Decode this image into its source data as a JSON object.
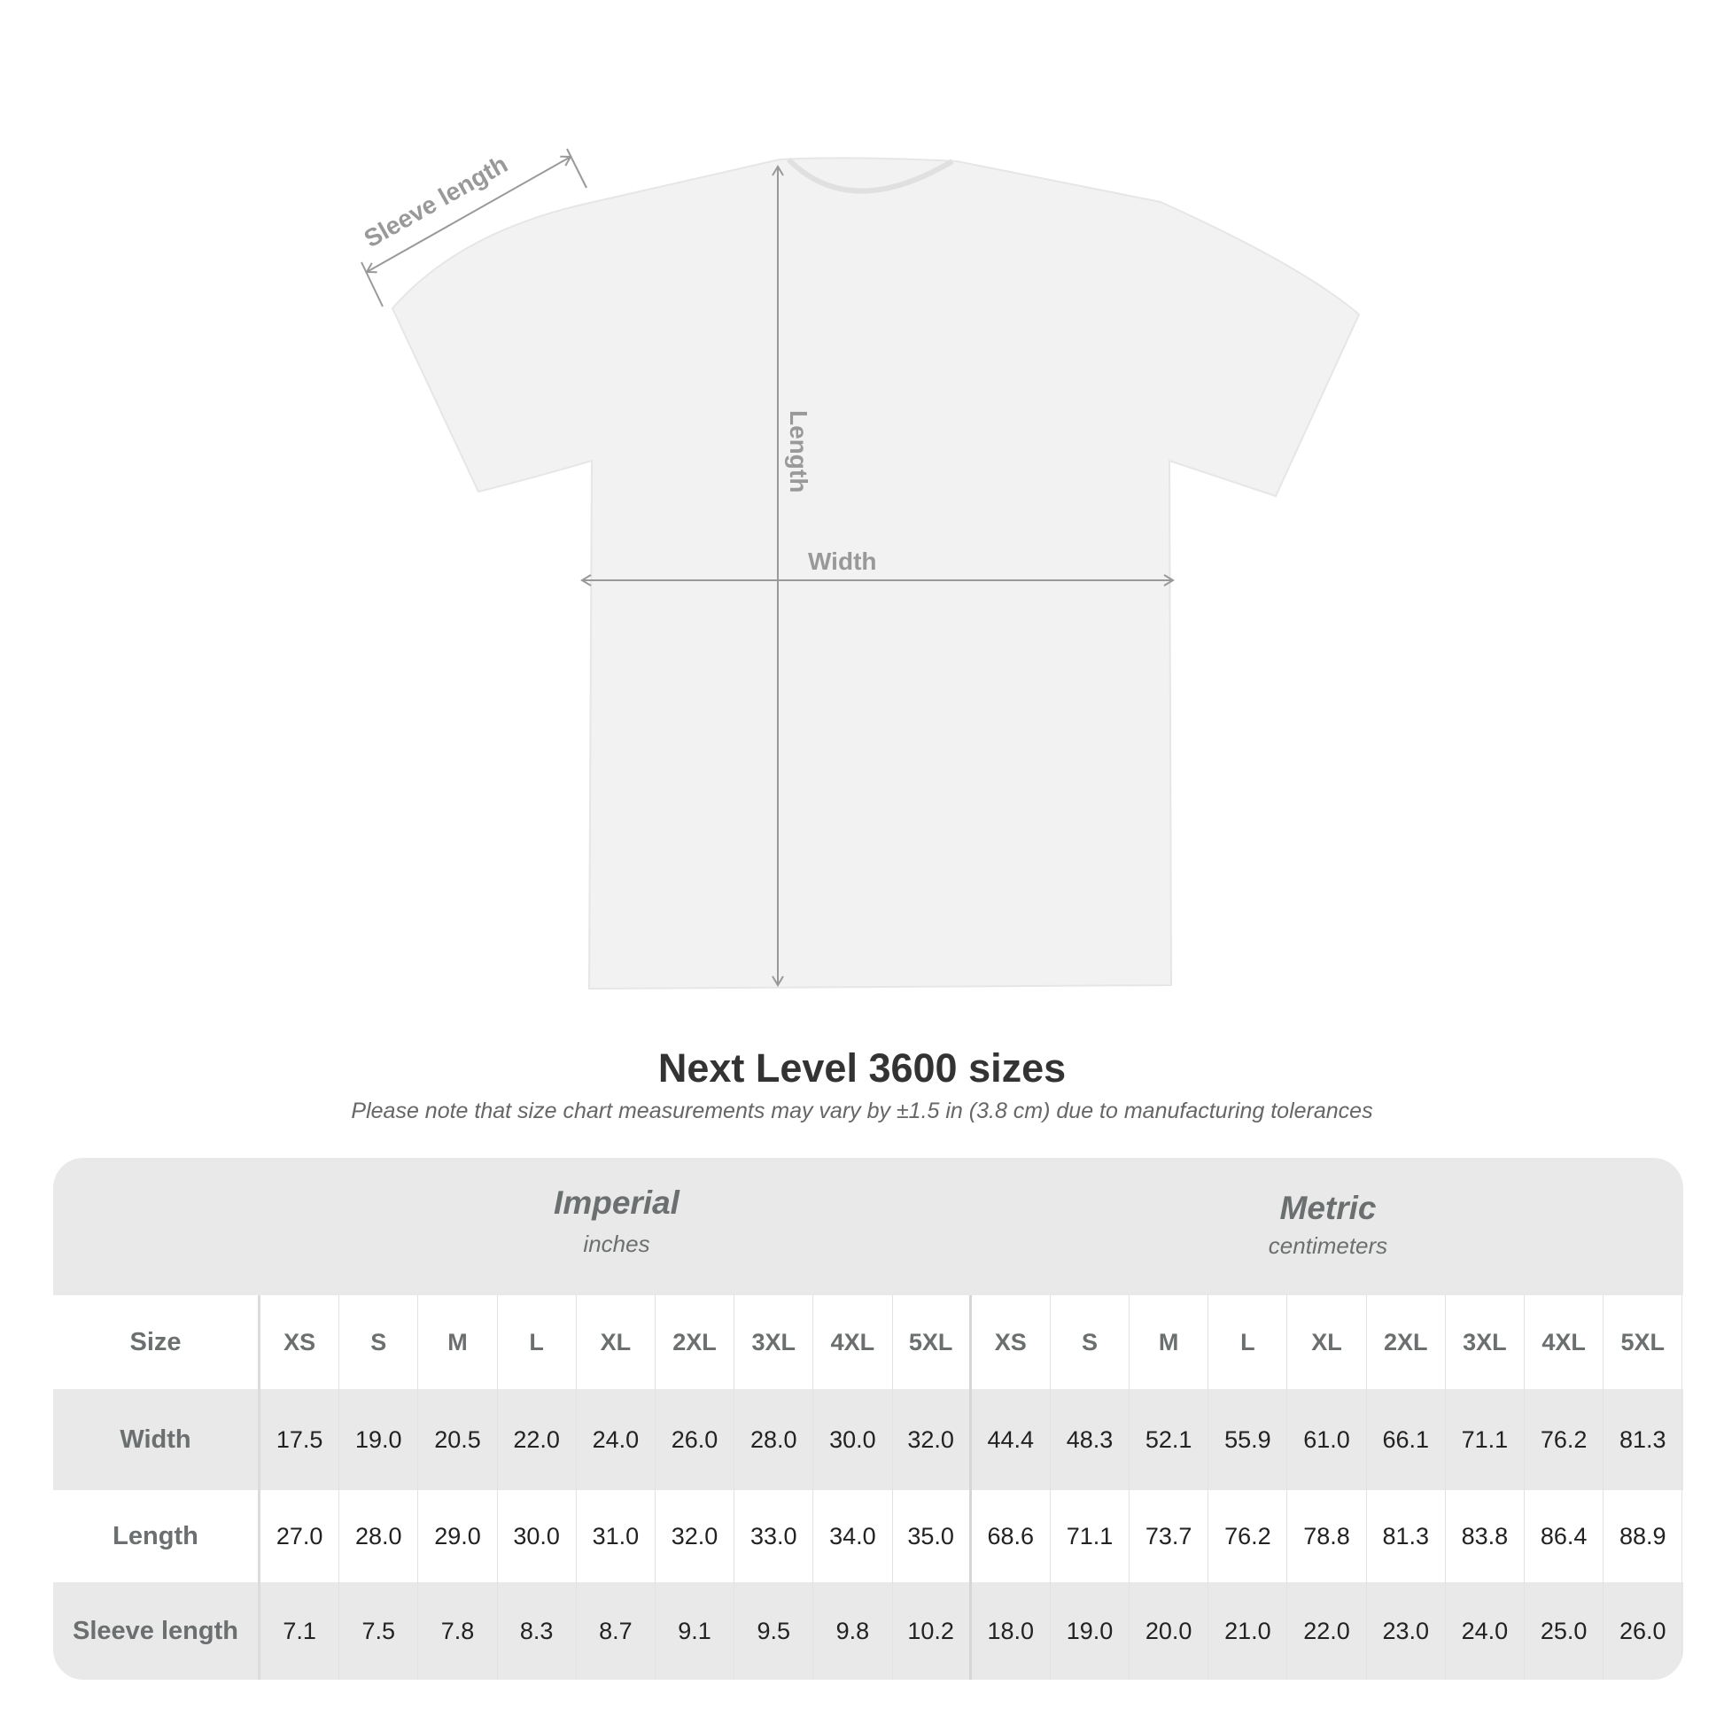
{
  "diagram": {
    "labels": {
      "sleeve": "Sleeve length",
      "length": "Length",
      "width": "Width"
    }
  },
  "title": "Next Level 3600 sizes",
  "subtitle": "Please note that size chart measurements may vary by ±1.5 in (3.8 cm) due to manufacturing tolerances",
  "table": {
    "imperial": {
      "name": "Imperial",
      "unit": "inches"
    },
    "metric": {
      "name": "Metric",
      "unit": "centimeters"
    },
    "size_label": "Size",
    "sizes": [
      "XS",
      "S",
      "M",
      "L",
      "XL",
      "2XL",
      "3XL",
      "4XL",
      "5XL"
    ],
    "rows": [
      {
        "label": "Width",
        "imperial": [
          "17.5",
          "19.0",
          "20.5",
          "22.0",
          "24.0",
          "26.0",
          "28.0",
          "30.0",
          "32.0"
        ],
        "metric": [
          "44.4",
          "48.3",
          "52.1",
          "55.9",
          "61.0",
          "66.1",
          "71.1",
          "76.2",
          "81.3"
        ]
      },
      {
        "label": "Length",
        "imperial": [
          "27.0",
          "28.0",
          "29.0",
          "30.0",
          "31.0",
          "32.0",
          "33.0",
          "34.0",
          "35.0"
        ],
        "metric": [
          "68.6",
          "71.1",
          "73.7",
          "76.2",
          "78.8",
          "81.3",
          "83.8",
          "86.4",
          "88.9"
        ]
      },
      {
        "label": "Sleeve length",
        "imperial": [
          "7.1",
          "7.5",
          "7.8",
          "8.3",
          "8.7",
          "9.1",
          "9.5",
          "9.8",
          "10.2"
        ],
        "metric": [
          "18.0",
          "19.0",
          "20.0",
          "21.0",
          "22.0",
          "23.0",
          "24.0",
          "25.0",
          "26.0"
        ]
      }
    ]
  }
}
